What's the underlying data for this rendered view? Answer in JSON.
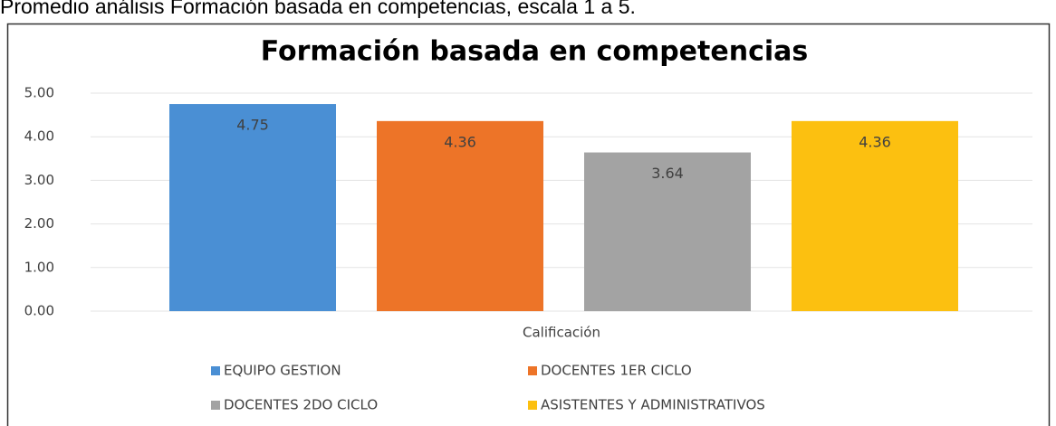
{
  "caption": "Promedio análisis Formación basada en competencias, escala 1 a 5.",
  "chart_data": {
    "type": "bar",
    "title": "Formación basada en competencias",
    "categories": [
      "Calificación"
    ],
    "series": [
      {
        "name": "EQUIPO GESTION",
        "color": "#4a8fd4",
        "values": [
          4.75
        ]
      },
      {
        "name": "DOCENTES 1ER CICLO",
        "color": "#ed7428",
        "values": [
          4.36
        ]
      },
      {
        "name": "DOCENTES 2DO CICLO",
        "color": "#a3a3a3",
        "values": [
          3.64
        ]
      },
      {
        "name": "ASISTENTES Y ADMINISTRATIVOS",
        "color": "#fcc010",
        "values": [
          4.36
        ]
      }
    ],
    "ylim": [
      0,
      5
    ],
    "yticks": [
      {
        "value": 0,
        "label": "0.00"
      },
      {
        "value": 1,
        "label": "1.00"
      },
      {
        "value": 2,
        "label": "2.00"
      },
      {
        "value": 3,
        "label": "3.00"
      },
      {
        "value": 4,
        "label": "4.00"
      },
      {
        "value": 5,
        "label": "5.00"
      }
    ],
    "grid": true,
    "legend": "bottom"
  }
}
